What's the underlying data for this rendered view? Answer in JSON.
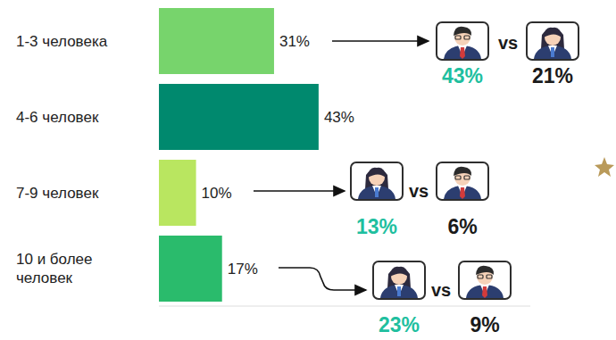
{
  "chart_data": {
    "type": "bar",
    "orientation": "horizontal",
    "categories": [
      "1-3 человека",
      "4-6 человек",
      "7-9 человек",
      "10 и более человек"
    ],
    "values": [
      31,
      43,
      10,
      17
    ],
    "value_labels": [
      "31%",
      "43%",
      "10%",
      "17%"
    ],
    "colors": [
      "#77d46c",
      "#00896e",
      "#b9e660",
      "#2abb6c"
    ],
    "data_labels": true,
    "tick_labels": "y",
    "xlim": [
      0,
      100
    ],
    "comparisons": [
      {
        "category": "1-3 человека",
        "separator": "vs",
        "values": [
          43,
          21
        ],
        "value_labels": [
          "43%",
          "21%"
        ],
        "colors": [
          "#1fbf9f",
          "#1a1a1a"
        ]
      },
      {
        "category": "7-9 человек",
        "separator": "vs",
        "values": [
          13,
          6
        ],
        "value_labels": [
          "13%",
          "6%"
        ],
        "colors": [
          "#1fbf9f",
          "#1a1a1a"
        ]
      },
      {
        "category": "10 и более человек",
        "separator": "vs",
        "values": [
          23,
          9
        ],
        "value_labels": [
          "23%",
          "9%"
        ],
        "colors": [
          "#1fbf9f",
          "#1a1a1a"
        ]
      }
    ]
  }
}
